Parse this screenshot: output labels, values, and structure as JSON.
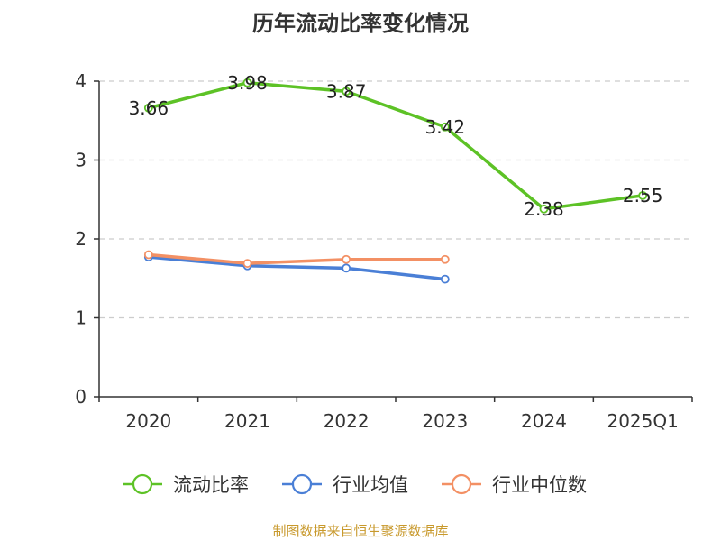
{
  "title": "历年流动比率变化情况",
  "source": "制图数据来自恒生聚源数据库",
  "chart_data": {
    "type": "line",
    "categories": [
      "2020",
      "2021",
      "2022",
      "2023",
      "2024",
      "2025Q1"
    ],
    "ylim": [
      0,
      4
    ],
    "yticks": [
      0,
      1,
      2,
      3,
      4
    ],
    "grid": true,
    "legend_position": "bottom",
    "series": [
      {
        "name": "流动比率",
        "color": "#5dc226",
        "values": [
          3.66,
          3.98,
          3.87,
          3.42,
          2.38,
          2.55
        ],
        "labels": [
          "3.66",
          "3.98",
          "3.87",
          "3.42",
          "2.38",
          "2.55"
        ]
      },
      {
        "name": "行业均值",
        "color": "#4a7fd6",
        "values": [
          1.77,
          1.66,
          1.63,
          1.49,
          null,
          null
        ]
      },
      {
        "name": "行业中位数",
        "color": "#f39064",
        "values": [
          1.8,
          1.69,
          1.74,
          1.74,
          null,
          null
        ]
      }
    ]
  }
}
